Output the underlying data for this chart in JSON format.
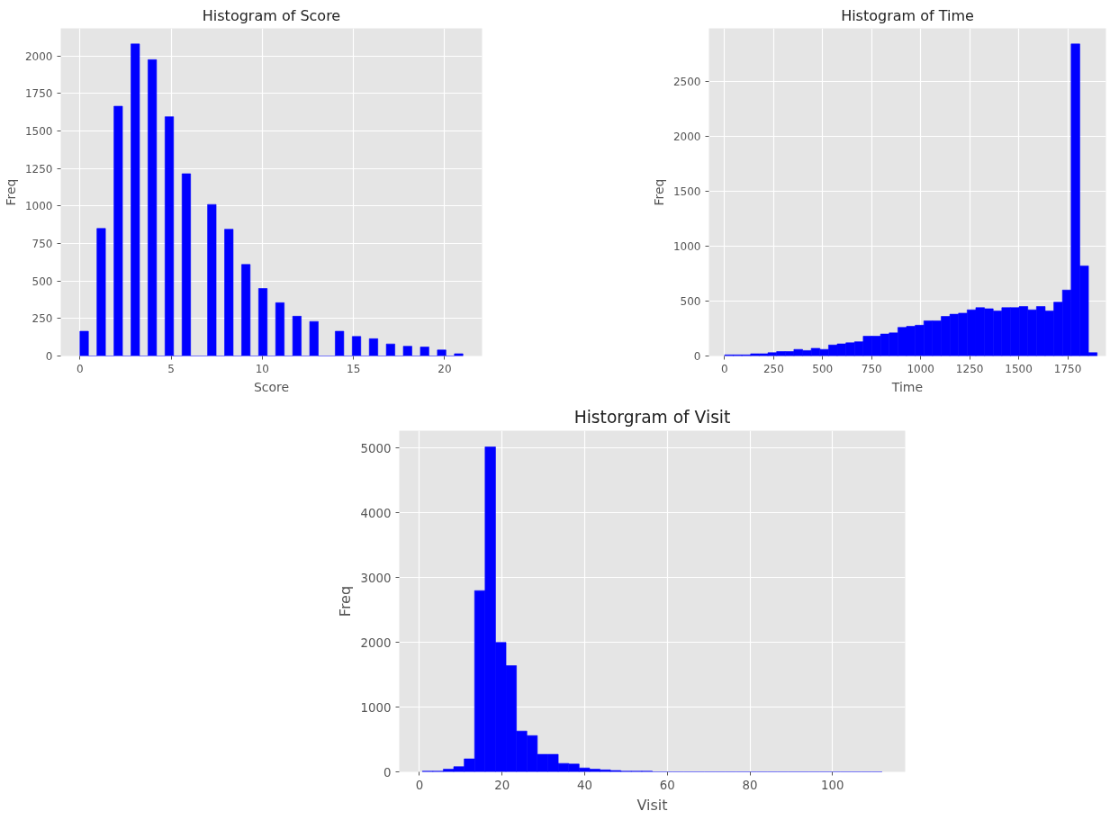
{
  "chart_data": [
    {
      "type": "histogram",
      "title": "Histogram of Score",
      "xlabel": "Score",
      "ylabel": "Freq",
      "color": "#0000ff",
      "grid": true,
      "bins": [
        0,
        0.467,
        0.933,
        1.4,
        1.867,
        2.333,
        2.8,
        3.267,
        3.733,
        4.2,
        4.667,
        5.133,
        5.6,
        6.067,
        6.533,
        7,
        7.467,
        7.933,
        8.4,
        8.867,
        9.333,
        9.8,
        10.267,
        10.733,
        11.2,
        11.667,
        12.133,
        12.6,
        13.067,
        13.533,
        14,
        14.467,
        14.933,
        15.4,
        15.867,
        16.333,
        16.8,
        17.267,
        17.733,
        18.2,
        18.667,
        19.133,
        19.6,
        20.067,
        20.533,
        21
      ],
      "values": [
        165,
        0,
        850,
        0,
        1665,
        0,
        2080,
        0,
        1975,
        0,
        1595,
        0,
        1215,
        0,
        0,
        1010,
        0,
        845,
        0,
        610,
        0,
        450,
        0,
        355,
        0,
        265,
        0,
        230,
        0,
        0,
        165,
        0,
        130,
        0,
        115,
        0,
        80,
        0,
        65,
        0,
        60,
        0,
        40,
        0,
        15
      ],
      "xlim": [
        -1.05,
        22.05
      ],
      "ylim": [
        0,
        2184
      ],
      "xticks": [
        0,
        5,
        10,
        15,
        20
      ],
      "yticks": [
        0,
        250,
        500,
        750,
        1000,
        1250,
        1500,
        1750,
        2000
      ]
    },
    {
      "type": "histogram",
      "title": "Histogram of Time",
      "xlabel": "Time",
      "ylabel": "Freq",
      "color": "#0000ff",
      "grid": true,
      "bins": [
        0,
        44.19,
        88.37,
        132.56,
        176.74,
        220.93,
        265.12,
        309.3,
        353.49,
        397.67,
        441.86,
        486.05,
        530.23,
        574.42,
        618.6,
        662.79,
        706.98,
        751.16,
        795.35,
        839.53,
        883.72,
        927.91,
        972.09,
        1016.28,
        1060.47,
        1104.65,
        1148.84,
        1193.02,
        1237.21,
        1281.4,
        1325.58,
        1369.77,
        1413.95,
        1458.14,
        1502.33,
        1546.51,
        1590.7,
        1634.88,
        1679.07,
        1723.26,
        1767.44,
        1811.63,
        1855.81,
        1900
      ],
      "values": [
        10,
        10,
        10,
        20,
        20,
        30,
        40,
        40,
        60,
        50,
        70,
        60,
        100,
        110,
        120,
        130,
        180,
        180,
        200,
        210,
        260,
        270,
        280,
        320,
        320,
        360,
        380,
        390,
        420,
        440,
        430,
        410,
        440,
        440,
        450,
        420,
        450,
        410,
        490,
        600,
        2840,
        820,
        30
      ],
      "xlim": [
        -80,
        1945
      ],
      "ylim": [
        0,
        2982
      ],
      "xticks": [
        0,
        250,
        500,
        750,
        1000,
        1250,
        1500,
        1750
      ],
      "yticks": [
        0,
        500,
        1000,
        1500,
        2000,
        2500
      ]
    },
    {
      "type": "histogram",
      "title": "Historgram of Visit",
      "xlabel": "Visit",
      "ylabel": "Freq",
      "color": "#0000ff",
      "grid": true,
      "bins": [
        0.7,
        3.23,
        5.76,
        8.29,
        10.82,
        13.35,
        15.88,
        18.41,
        20.94,
        23.47,
        26,
        28.53,
        31.06,
        33.59,
        36.12,
        38.65,
        41.18,
        43.71,
        46.24,
        48.77,
        51.3,
        53.83,
        56.36,
        58.89,
        61.42,
        63.95,
        66.48,
        69.01,
        71.54,
        74.07,
        76.6,
        79.13,
        81.66,
        84.19,
        86.72,
        89.25,
        91.78,
        94.31,
        96.84,
        99.37,
        101.9,
        104.43,
        106.96,
        109.49,
        112.02
      ],
      "values": [
        10,
        10,
        40,
        80,
        200,
        2800,
        5020,
        2000,
        1640,
        630,
        560,
        270,
        270,
        130,
        120,
        60,
        40,
        30,
        20,
        10,
        10,
        10,
        0,
        0,
        0,
        0,
        0,
        0,
        0,
        0,
        0,
        0,
        0,
        0,
        0,
        0,
        0,
        0,
        0,
        0,
        0,
        0,
        0,
        0
      ],
      "xlim": [
        -4.9,
        117.6
      ],
      "ylim": [
        0,
        5271
      ],
      "xticks": [
        0,
        20,
        40,
        60,
        80,
        100
      ],
      "yticks": [
        0,
        1000,
        2000,
        3000,
        4000,
        5000
      ]
    }
  ]
}
